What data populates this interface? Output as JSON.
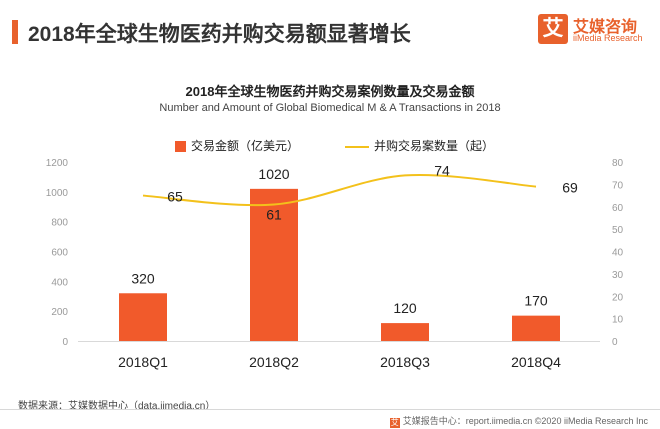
{
  "header": {
    "title": "2018年全球生物医药并购交易额显著增长",
    "logo_mark": "艾",
    "logo_cn": "艾媒咨询",
    "logo_en": "iiMedia Research"
  },
  "chart_data": {
    "type": "bar",
    "title": "2018年全球生物医药并购交易案例数量及交易金额",
    "subtitle": "Number and Amount of Global Biomedical M & A Transactions in 2018",
    "categories": [
      "2018Q1",
      "2018Q2",
      "2018Q3",
      "2018Q4"
    ],
    "series": [
      {
        "name": "交易金额（亿美元）",
        "type": "bar",
        "axis": "left",
        "values": [
          320,
          1020,
          120,
          170
        ],
        "color": "#f15a2b"
      },
      {
        "name": "并购交易案数量（起）",
        "type": "line",
        "axis": "right",
        "values": [
          65,
          61,
          74,
          69
        ],
        "color": "#f3c11b"
      }
    ],
    "y_left": {
      "min": 0,
      "max": 1200,
      "ticks": [
        0,
        200,
        400,
        600,
        800,
        1000,
        1200
      ]
    },
    "y_right": {
      "min": 0,
      "max": 80,
      "ticks": [
        0,
        10,
        20,
        30,
        40,
        50,
        60,
        70,
        80
      ]
    },
    "grid": false,
    "legend_position": "top"
  },
  "source": "数据来源：艾媒数据中心（data.iimedia.cn）",
  "footer": {
    "mark": "艾",
    "text": "艾媒报告中心：report.iimedia.cn   ©2020  iiMedia Research  Inc"
  }
}
